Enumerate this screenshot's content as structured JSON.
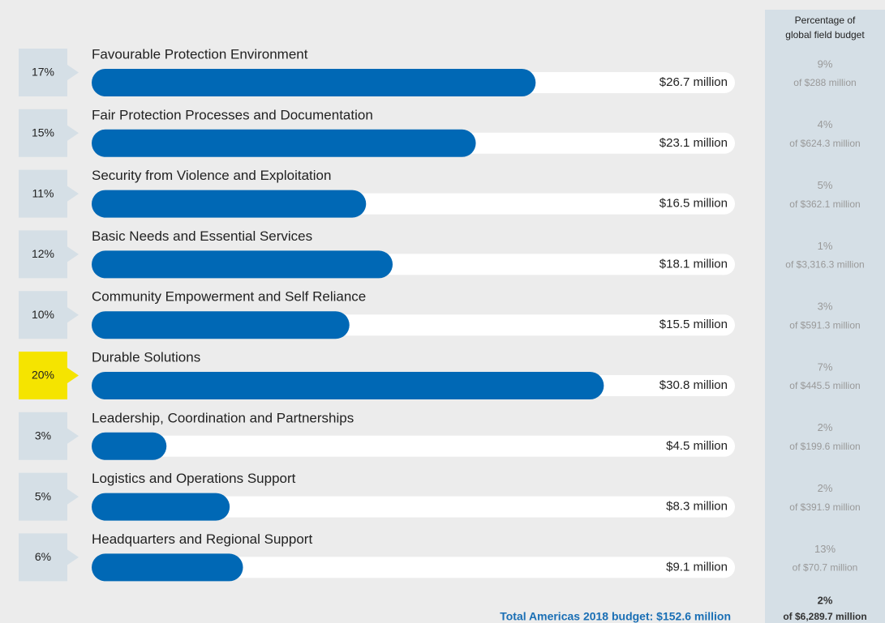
{
  "chart_data": {
    "type": "bar",
    "categories": [
      "Favourable Protection Environment",
      "Fair Protection Processes and Documentation",
      "Security from Violence and Exploitation",
      "Basic Needs and Essential Services",
      "Community Empowerment and Self Reliance",
      "Durable Solutions",
      "Leadership, Coordination and Partnerships",
      "Logistics and Operations Support",
      "Headquarters and Regional Support"
    ],
    "values": [
      26.7,
      23.1,
      16.5,
      18.1,
      15.5,
      30.8,
      4.5,
      8.3,
      9.1
    ],
    "value_labels": [
      "$26.7 million",
      "$23.1 million",
      "$16.5 million",
      "$18.1 million",
      "$15.5 million",
      "$30.8 million",
      "$4.5 million",
      "$8.3 million",
      "$9.1 million"
    ],
    "color": "#0068b5",
    "shares": [
      {
        "value": 17,
        "label": "17%"
      },
      {
        "value": 15,
        "label": "15%"
      },
      {
        "value": 11,
        "label": "11%"
      },
      {
        "value": 12,
        "label": "12%"
      },
      {
        "value": 10,
        "label": "10%"
      },
      {
        "value": 20,
        "label": "20%"
      },
      {
        "value": 3,
        "label": "3%"
      },
      {
        "value": 5,
        "label": "5%"
      },
      {
        "value": 6,
        "label": "6%"
      }
    ],
    "badge_color": "#d5dfe6",
    "highlight": "Durable Solutions",
    "highlight_color": "#f5e400",
    "side_header": [
      "Percentage of",
      "global field budget"
    ],
    "global_shares": [
      {
        "value": 9,
        "label": "9%"
      },
      {
        "value": 4,
        "label": "4%"
      },
      {
        "value": 5,
        "label": "5%"
      },
      {
        "value": 1,
        "label": "1%"
      },
      {
        "value": 3,
        "label": "3%"
      },
      {
        "value": 7,
        "label": "7%"
      },
      {
        "value": 2,
        "label": "2%"
      },
      {
        "value": 2,
        "label": "2%"
      },
      {
        "value": 13,
        "label": "13%"
      }
    ],
    "global_budgets": [
      "of $288 million",
      "of $624.3 million",
      "of $362.1 million",
      "of $3,316.3 million",
      "of $591.3 million",
      "of $445.5 million",
      "of $199.6 million",
      "of $391.9 million",
      "of $70.7 million"
    ],
    "global_total": {
      "value": 2,
      "label": "2%",
      "budget": "of $6,289.7 million"
    },
    "total": "Total Americas 2018 budget: $152.6 million"
  }
}
